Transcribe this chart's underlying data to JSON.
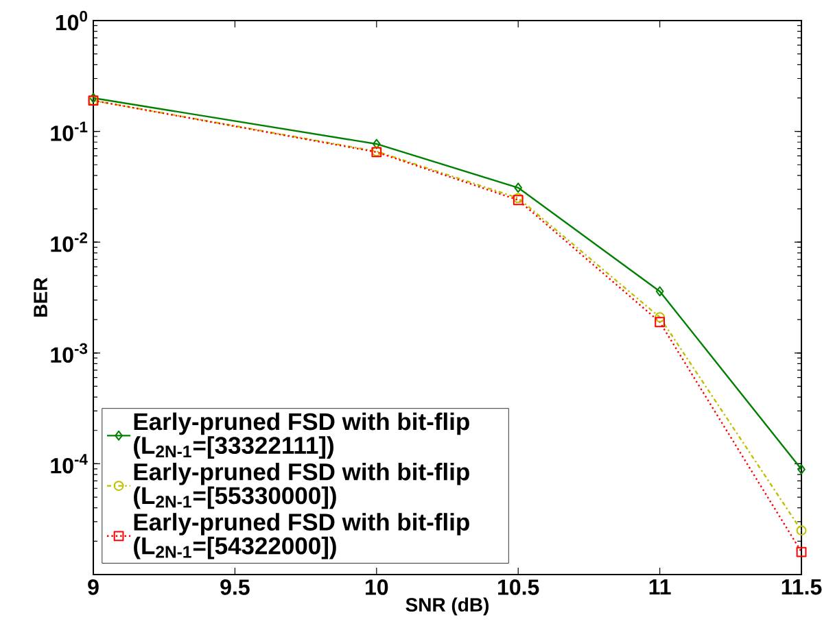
{
  "chart_data": {
    "type": "line",
    "xlabel": "SNR (dB)",
    "ylabel": "BER",
    "log": "y",
    "xlim": [
      9,
      11.5
    ],
    "xticks": [
      9,
      9.5,
      10,
      10.5,
      11,
      11.5
    ],
    "ylim": [
      1e-05,
      1
    ],
    "yticks": [
      {
        "value": 1e-05,
        "label": null
      },
      {
        "value": 0.0001,
        "label": "10$^{-4}$"
      },
      {
        "value": 0.001,
        "label": "10$^{-3}$"
      },
      {
        "value": 0.01,
        "label": "10$^{-2}$"
      },
      {
        "value": 0.1,
        "label": "10$^{-1}$"
      },
      {
        "value": 1,
        "label": "10$^{0}$"
      }
    ],
    "grid": false,
    "legend": "bottom left",
    "series": [
      {
        "name": "Early-pruned FSD with bit-flip (L$_{2N-1}$=[33322111])",
        "color": "#008000",
        "marker": "diamond",
        "line_style": "solid",
        "x": [
          9,
          10,
          10.5,
          11,
          11.5
        ],
        "values": [
          0.2,
          0.077,
          0.031,
          0.0036,
          8.9e-05
        ]
      },
      {
        "name": "Early-pruned FSD with bit-flip (L$_{2N-1}$=[55330000])",
        "color": "#bfbf00",
        "marker": "circle",
        "line_style": "dashdot",
        "x": [
          9,
          10,
          10.5,
          11,
          11.5
        ],
        "values": [
          0.19,
          0.066,
          0.025,
          0.0021,
          2.5e-05
        ]
      },
      {
        "name": "Early-pruned FSD with bit-flip (L$_{2N-1}$=[54322000])",
        "color": "#ff0000",
        "marker": "square",
        "line_style": "dotted",
        "x": [
          9,
          10,
          10.5,
          11,
          11.5
        ],
        "values": [
          0.19,
          0.065,
          0.024,
          0.0019,
          1.6e-05
        ]
      }
    ]
  }
}
